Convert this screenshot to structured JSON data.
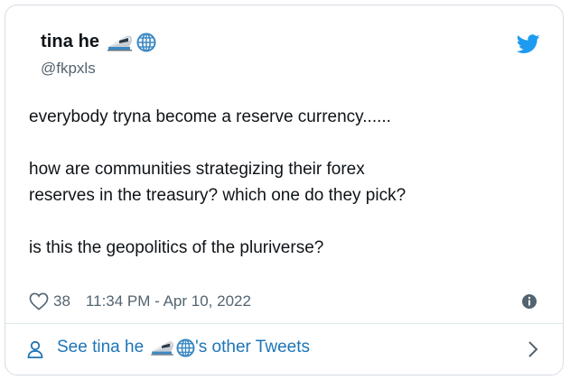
{
  "author": {
    "display_name": "tina he",
    "emoji_name": "bullet-train-globe-emoji",
    "handle": "@fkpxls"
  },
  "tweet": {
    "lines": [
      "everybody tryna become a reserve currency......",
      "how are communities strategizing their forex",
      "reserves in the treasury? which one do they pick?",
      "is this the geopolitics of the pluriverse?"
    ],
    "like_count": "38",
    "timestamp": "11:34 PM - Apr 10, 2022"
  },
  "footer": {
    "prefix": "See tina he",
    "suffix": "'s other Tweets"
  },
  "colors": {
    "twitter_blue": "#1d9bf0",
    "link_blue": "#1d75b8",
    "text": "#0f1419",
    "secondary": "#536471"
  }
}
